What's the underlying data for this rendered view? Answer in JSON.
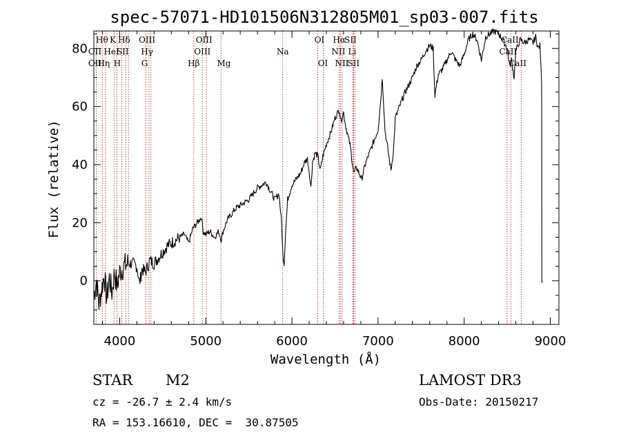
{
  "chart_data": {
    "type": "line",
    "title": "spec-57071-HD101506N312805M01_sp03-007.fits",
    "xlabel": "Wavelength (Å)",
    "ylabel": "Flux (relative)",
    "xlim": [
      3700,
      9100
    ],
    "ylim": [
      -15,
      86
    ],
    "xticks": [
      4000,
      5000,
      6000,
      7000,
      8000,
      9000
    ],
    "yticks": [
      0,
      20,
      40,
      60,
      80
    ],
    "x_minor_step": 200,
    "y_minor_step": 5,
    "series": [
      {
        "name": "spectrum",
        "points": [
          [
            3700,
            -5
          ],
          [
            3730,
            0
          ],
          [
            3760,
            -8
          ],
          [
            3790,
            -3
          ],
          [
            3820,
            2
          ],
          [
            3850,
            -6
          ],
          [
            3880,
            1
          ],
          [
            3910,
            -4
          ],
          [
            3940,
            3
          ],
          [
            3970,
            -2
          ],
          [
            4000,
            3
          ],
          [
            4050,
            5
          ],
          [
            4100,
            6
          ],
          [
            4150,
            6
          ],
          [
            4200,
            5
          ],
          [
            4230,
            -1
          ],
          [
            4260,
            4
          ],
          [
            4300,
            3
          ],
          [
            4350,
            7
          ],
          [
            4400,
            6
          ],
          [
            4450,
            8
          ],
          [
            4500,
            10
          ],
          [
            4550,
            12
          ],
          [
            4600,
            13
          ],
          [
            4650,
            14
          ],
          [
            4700,
            15
          ],
          [
            4750,
            16
          ],
          [
            4800,
            13
          ],
          [
            4850,
            18
          ],
          [
            4900,
            20
          ],
          [
            4950,
            22
          ],
          [
            4970,
            17
          ],
          [
            5000,
            16
          ],
          [
            5050,
            17
          ],
          [
            5100,
            15
          ],
          [
            5150,
            17
          ],
          [
            5180,
            14
          ],
          [
            5200,
            17
          ],
          [
            5250,
            21
          ],
          [
            5300,
            23
          ],
          [
            5350,
            25
          ],
          [
            5400,
            26
          ],
          [
            5450,
            27
          ],
          [
            5500,
            28
          ],
          [
            5550,
            30
          ],
          [
            5600,
            32
          ],
          [
            5650,
            33
          ],
          [
            5700,
            34
          ],
          [
            5750,
            31
          ],
          [
            5800,
            28
          ],
          [
            5850,
            30
          ],
          [
            5880,
            20
          ],
          [
            5895,
            9
          ],
          [
            5910,
            6
          ],
          [
            5925,
            16
          ],
          [
            5950,
            28
          ],
          [
            6000,
            33
          ],
          [
            6050,
            35
          ],
          [
            6100,
            37
          ],
          [
            6150,
            41
          ],
          [
            6180,
            42
          ],
          [
            6200,
            38
          ],
          [
            6220,
            32
          ],
          [
            6240,
            41
          ],
          [
            6270,
            44
          ],
          [
            6300,
            43
          ],
          [
            6330,
            38
          ],
          [
            6360,
            43
          ],
          [
            6400,
            47
          ],
          [
            6450,
            51
          ],
          [
            6500,
            56
          ],
          [
            6550,
            59
          ],
          [
            6570,
            55
          ],
          [
            6600,
            58
          ],
          [
            6620,
            54
          ],
          [
            6650,
            50
          ],
          [
            6680,
            46
          ],
          [
            6700,
            41
          ],
          [
            6720,
            37
          ],
          [
            6750,
            39
          ],
          [
            6780,
            37
          ],
          [
            6810,
            35
          ],
          [
            6850,
            40
          ],
          [
            6900,
            44
          ],
          [
            6950,
            48
          ],
          [
            7000,
            52
          ],
          [
            7030,
            62
          ],
          [
            7050,
            70
          ],
          [
            7080,
            52
          ],
          [
            7100,
            48
          ],
          [
            7130,
            42
          ],
          [
            7150,
            38
          ],
          [
            7180,
            45
          ],
          [
            7200,
            56
          ],
          [
            7250,
            60
          ],
          [
            7300,
            64
          ],
          [
            7350,
            67
          ],
          [
            7400,
            70
          ],
          [
            7450,
            74
          ],
          [
            7500,
            76
          ],
          [
            7550,
            79
          ],
          [
            7600,
            81
          ],
          [
            7640,
            80
          ],
          [
            7660,
            64
          ],
          [
            7700,
            71
          ],
          [
            7750,
            73
          ],
          [
            7800,
            76
          ],
          [
            7850,
            79
          ],
          [
            7900,
            76
          ],
          [
            7950,
            74
          ],
          [
            8000,
            78
          ],
          [
            8050,
            83
          ],
          [
            8100,
            85
          ],
          [
            8150,
            83
          ],
          [
            8200,
            76
          ],
          [
            8250,
            84
          ],
          [
            8300,
            85
          ],
          [
            8350,
            86
          ],
          [
            8400,
            85
          ],
          [
            8450,
            83
          ],
          [
            8500,
            80
          ],
          [
            8530,
            74
          ],
          [
            8550,
            76
          ],
          [
            8580,
            70
          ],
          [
            8600,
            79
          ],
          [
            8650,
            83
          ],
          [
            8700,
            82
          ],
          [
            8750,
            83
          ],
          [
            8800,
            82
          ],
          [
            8830,
            84
          ],
          [
            8860,
            80
          ],
          [
            8880,
            81
          ],
          [
            8900,
            68
          ],
          [
            8902,
            0
          ],
          [
            8905,
            0
          ]
        ]
      }
    ],
    "lines": [
      {
        "name": "OII",
        "wl": 3727
      },
      {
        "name": "Hθ",
        "wl": 3798
      },
      {
        "name": "Hη",
        "wl": 3835
      },
      {
        "name": "K",
        "wl": 3934
      },
      {
        "name": "H",
        "wl": 3968
      },
      {
        "name": "HeI",
        "wl": 4026
      },
      {
        "name": "SII",
        "wl": 4070
      },
      {
        "name": "Hδ",
        "wl": 4102
      },
      {
        "name": "G",
        "wl": 4305
      },
      {
        "name": "Hγ",
        "wl": 4341
      },
      {
        "name": "OIII",
        "wl": 4363
      },
      {
        "name": "Hβ",
        "wl": 4861
      },
      {
        "name": "OIII",
        "wl": 4959
      },
      {
        "name": "OIII",
        "wl": 5007
      },
      {
        "name": "Mg",
        "wl": 5176
      },
      {
        "name": "Na",
        "wl": 5893
      },
      {
        "name": "OI",
        "wl": 6300
      },
      {
        "name": "OI",
        "wl": 6364
      },
      {
        "name": "NII",
        "wl": 6548
      },
      {
        "name": "Hα",
        "wl": 6563
      },
      {
        "name": "NII",
        "wl": 6583
      },
      {
        "name": "Li",
        "wl": 6708
      },
      {
        "name": "SII",
        "wl": 6716
      },
      {
        "name": "SII",
        "wl": 6731
      },
      {
        "name": "CaII",
        "wl": 8498
      },
      {
        "name": "CaII",
        "wl": 8542
      },
      {
        "name": "CaII",
        "wl": 8662
      }
    ],
    "line_labels": [
      {
        "text": "OII",
        "wl": 3712,
        "row": 3
      },
      {
        "text": "OII",
        "wl": 3712,
        "row": 2
      },
      {
        "text": "Hθ",
        "wl": 3795,
        "row": 1
      },
      {
        "text": "Hη",
        "wl": 3815,
        "row": 3
      },
      {
        "text": "K",
        "wl": 3920,
        "row": 1
      },
      {
        "text": "HeI",
        "wl": 3905,
        "row": 2
      },
      {
        "text": "H",
        "wl": 3972,
        "row": 3
      },
      {
        "text": "SII",
        "wl": 4035,
        "row": 2
      },
      {
        "text": "Hδ",
        "wl": 4052,
        "row": 1
      },
      {
        "text": "OIII",
        "wl": 4318,
        "row": 1
      },
      {
        "text": "Hγ",
        "wl": 4318,
        "row": 2
      },
      {
        "text": "G",
        "wl": 4290,
        "row": 3
      },
      {
        "text": "Hβ",
        "wl": 4860,
        "row": 3
      },
      {
        "text": "OIII",
        "wl": 4980,
        "row": 1
      },
      {
        "text": "OIII",
        "wl": 4960,
        "row": 2
      },
      {
        "text": "Mg",
        "wl": 5210,
        "row": 3
      },
      {
        "text": "Na",
        "wl": 5893,
        "row": 2
      },
      {
        "text": "OI",
        "wl": 6320,
        "row": 1
      },
      {
        "text": "OI",
        "wl": 6360,
        "row": 3
      },
      {
        "text": "Hα",
        "wl": 6550,
        "row": 1
      },
      {
        "text": "SII",
        "wl": 6680,
        "row": 1
      },
      {
        "text": "NII",
        "wl": 6540,
        "row": 2
      },
      {
        "text": "Li",
        "wl": 6700,
        "row": 2
      },
      {
        "text": "NII",
        "wl": 6580,
        "row": 3
      },
      {
        "text": "SII",
        "wl": 6715,
        "row": 3
      },
      {
        "text": "CaII",
        "wl": 8530,
        "row": 1
      },
      {
        "text": "CaII",
        "wl": 8510,
        "row": 2
      },
      {
        "text": "CaII",
        "wl": 8620,
        "row": 3
      }
    ]
  },
  "info": {
    "object_class": "STAR",
    "subclass": "M2",
    "survey": "LAMOST DR3",
    "velocity": "cz = -26.7 ± 2.4 km/s",
    "obs_date": "Obs-Date: 20150217",
    "coords": "RA = 153.16610, DEC =  30.87505"
  },
  "colors": {
    "line_marker": "#c00000",
    "spectrum": "#000000"
  }
}
